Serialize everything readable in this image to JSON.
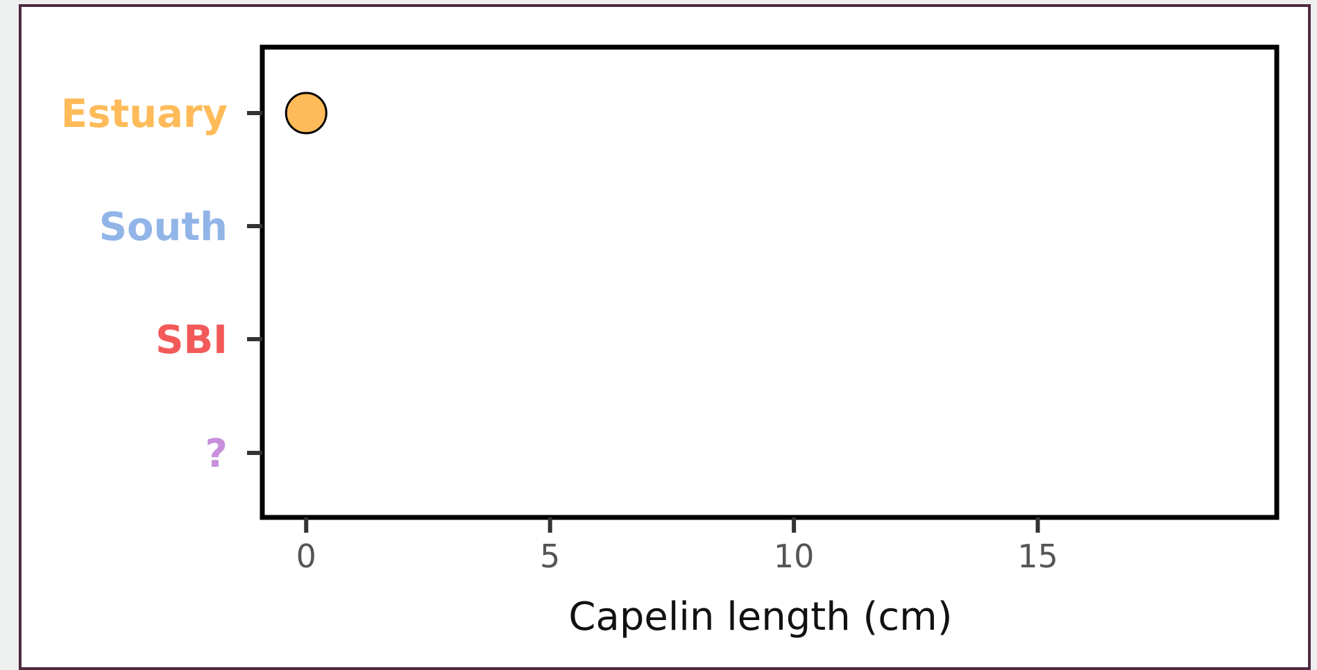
{
  "chart_data": {
    "type": "scatter",
    "title": "",
    "xlabel": "Capelin length (cm)",
    "ylabel": "",
    "xlim": [
      -0.9,
      19.9
    ],
    "x_ticks": [
      0,
      5,
      10,
      15
    ],
    "categories": [
      "Estuary",
      "South",
      "SBI",
      "?"
    ],
    "category_colors": [
      "#ffbb59",
      "#92b5e8",
      "#f25a5a",
      "#c88fdc"
    ],
    "points": [
      {
        "category": "Estuary",
        "x": 0,
        "color": "#ffbb59"
      }
    ],
    "grid": false,
    "legend": "none"
  }
}
